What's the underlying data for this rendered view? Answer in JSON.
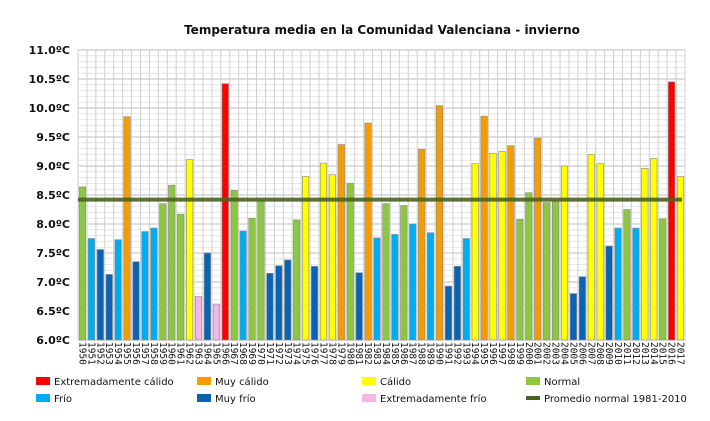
{
  "chart_data": {
    "type": "bar",
    "title": "Temperatura media en la Comunidad Valenciana - invierno",
    "xlabel": "",
    "ylabel": "",
    "ylim": [
      6.0,
      11.0
    ],
    "yticks": [
      "6.0ºC",
      "6.5ºC",
      "7.0ºC",
      "7.5ºC",
      "8.0ºC",
      "8.5ºC",
      "9.0ºC",
      "9.5ºC",
      "10.0ºC",
      "10.5ºC",
      "11.0ºC"
    ],
    "grid": true,
    "legend_position": "bottom",
    "categories": [
      "1950",
      "1951",
      "1952",
      "1953",
      "1954",
      "1955",
      "1956",
      "1957",
      "1958",
      "1959",
      "1960",
      "1961",
      "1962",
      "1963",
      "1964",
      "1965",
      "1966",
      "1967",
      "1968",
      "1969",
      "1970",
      "1971",
      "1972",
      "1973",
      "1974",
      "1975",
      "1976",
      "1977",
      "1978",
      "1979",
      "1980",
      "1981",
      "1982",
      "1983",
      "1984",
      "1985",
      "1986",
      "1987",
      "1988",
      "1989",
      "1990",
      "1991",
      "1992",
      "1993",
      "1994",
      "1995",
      "1996",
      "1997",
      "1998",
      "1999",
      "2000",
      "2001",
      "2002",
      "2003",
      "2004",
      "2005",
      "2006",
      "2007",
      "2008",
      "2009",
      "2010",
      "2011",
      "2012",
      "2013",
      "2014",
      "2015",
      "2016",
      "2017"
    ],
    "values": [
      8.64,
      7.75,
      7.56,
      7.13,
      7.73,
      9.85,
      7.35,
      7.87,
      7.93,
      8.35,
      8.67,
      8.17,
      9.11,
      6.75,
      7.5,
      6.62,
      10.42,
      8.58,
      7.88,
      8.1,
      8.4,
      7.15,
      7.28,
      7.38,
      8.07,
      8.82,
      7.27,
      9.05,
      8.85,
      9.37,
      8.7,
      7.16,
      9.74,
      7.76,
      8.35,
      7.82,
      8.32,
      8.0,
      9.29,
      7.85,
      10.04,
      6.93,
      7.27,
      7.75,
      9.04,
      9.86,
      9.22,
      9.25,
      9.35,
      8.08,
      8.54,
      9.48,
      8.37,
      8.4,
      9.0,
      6.8,
      7.09,
      9.2,
      9.04,
      7.62,
      7.93,
      8.25,
      7.93,
      8.96,
      9.13,
      8.09,
      10.45,
      8.82
    ],
    "classes": [
      "N",
      "F",
      "MF",
      "MF",
      "F",
      "MC",
      "MF",
      "F",
      "F",
      "N",
      "N",
      "N",
      "C",
      "EF",
      "MF",
      "EF",
      "EC",
      "N",
      "F",
      "N",
      "N",
      "MF",
      "MF",
      "MF",
      "N",
      "C",
      "MF",
      "C",
      "C",
      "MC",
      "N",
      "MF",
      "MC",
      "F",
      "N",
      "F",
      "N",
      "F",
      "MC",
      "F",
      "MC",
      "MF",
      "MF",
      "F",
      "C",
      "MC",
      "C",
      "C",
      "MC",
      "N",
      "N",
      "MC",
      "N",
      "N",
      "C",
      "MF",
      "MF",
      "C",
      "C",
      "MF",
      "F",
      "N",
      "F",
      "C",
      "C",
      "N",
      "EC",
      "C"
    ],
    "reference_line": {
      "name": "Promedio normal 1981-2010",
      "value": 8.42,
      "color": "#4b6420"
    },
    "legend": [
      {
        "key": "EC",
        "label": "Extremadamente cálido",
        "color": "#ff0000"
      },
      {
        "key": "MC",
        "label": "Muy cálido",
        "color": "#f59c00"
      },
      {
        "key": "C",
        "label": "Cálido",
        "color": "#ffff00"
      },
      {
        "key": "N",
        "label": "Normal",
        "color": "#8dc641"
      },
      {
        "key": "F",
        "label": "Frío",
        "color": "#00aeef"
      },
      {
        "key": "MF",
        "label": "Muy frío",
        "color": "#0a64b4"
      },
      {
        "key": "EF",
        "label": "Extremadamente frío",
        "color": "#f3b6e6"
      },
      {
        "key": "LINE",
        "label": "Promedio normal 1981-2010",
        "color": "#4b6420"
      }
    ]
  }
}
